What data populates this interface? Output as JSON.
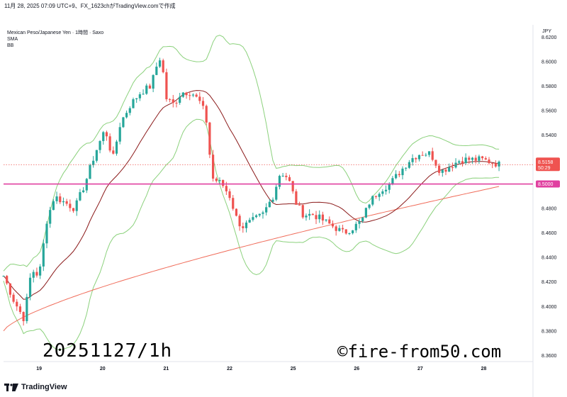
{
  "header": {
    "text": "11月 28, 2025 07:09 UTC+9、FX_1623chがTradingView.comで作成"
  },
  "legend": {
    "symbol": "Mexican Peso/Japanese Yen · 1時間 · Saxo",
    "ind1": "SMA",
    "ind2": "BB"
  },
  "currency": "JPY",
  "price_tag": {
    "value": "8.5158",
    "countdown": "50:29",
    "color": "#ef5350"
  },
  "line_tag": {
    "value": "8.5000",
    "color": "#e040a0"
  },
  "watermark_left": "20251127/1h",
  "watermark_right": "©fire-from50.com",
  "footer": {
    "brand": "TradingView"
  },
  "colors": {
    "up": "#26a69a",
    "down": "#ef5350",
    "bb": "#8bd17c",
    "sma_fast": "#8b1a1a",
    "sma_slow": "#f06c5a",
    "hline": "#e040a0"
  },
  "chart_data": {
    "type": "candlestick",
    "ylim": [
      8.355,
      8.63
    ],
    "y_ticks": [
      "8.3600",
      "8.3800",
      "8.4000",
      "8.4200",
      "8.4400",
      "8.4600",
      "8.4800",
      "8.5000",
      "8.5200",
      "8.5400",
      "8.5600",
      "8.5800",
      "8.6000",
      "8.6200"
    ],
    "x_ticks": [
      {
        "label": "19",
        "t": 0.07
      },
      {
        "label": "20",
        "t": 0.195
      },
      {
        "label": "21",
        "t": 0.32
      },
      {
        "label": "22",
        "t": 0.445
      },
      {
        "label": "25",
        "t": 0.57
      },
      {
        "label": "26",
        "t": 0.695
      },
      {
        "label": "27",
        "t": 0.82
      },
      {
        "label": "28",
        "t": 0.945
      }
    ],
    "horizontal_line": 8.5,
    "last_price": 8.5158,
    "close_path": [
      [
        0,
        8.425
      ],
      [
        0.02,
        8.405
      ],
      [
        0.04,
        8.39
      ],
      [
        0.055,
        8.43
      ],
      [
        0.07,
        8.425
      ],
      [
        0.085,
        8.47
      ],
      [
        0.1,
        8.49
      ],
      [
        0.12,
        8.485
      ],
      [
        0.14,
        8.48
      ],
      [
        0.16,
        8.5
      ],
      [
        0.18,
        8.525
      ],
      [
        0.2,
        8.545
      ],
      [
        0.215,
        8.52
      ],
      [
        0.23,
        8.55
      ],
      [
        0.25,
        8.565
      ],
      [
        0.27,
        8.575
      ],
      [
        0.29,
        8.58
      ],
      [
        0.3,
        8.595
      ],
      [
        0.31,
        8.605
      ],
      [
        0.32,
        8.57
      ],
      [
        0.335,
        8.565
      ],
      [
        0.35,
        8.575
      ],
      [
        0.37,
        8.575
      ],
      [
        0.39,
        8.565
      ],
      [
        0.4,
        8.55
      ],
      [
        0.41,
        8.505
      ],
      [
        0.43,
        8.5
      ],
      [
        0.445,
        8.49
      ],
      [
        0.46,
        8.47
      ],
      [
        0.47,
        8.465
      ],
      [
        0.49,
        8.47
      ],
      [
        0.51,
        8.475
      ],
      [
        0.53,
        8.49
      ],
      [
        0.545,
        8.51
      ],
      [
        0.56,
        8.505
      ],
      [
        0.575,
        8.485
      ],
      [
        0.59,
        8.475
      ],
      [
        0.61,
        8.475
      ],
      [
        0.63,
        8.47
      ],
      [
        0.65,
        8.465
      ],
      [
        0.67,
        8.46
      ],
      [
        0.69,
        8.465
      ],
      [
        0.705,
        8.47
      ],
      [
        0.72,
        8.485
      ],
      [
        0.74,
        8.495
      ],
      [
        0.76,
        8.5
      ],
      [
        0.78,
        8.51
      ],
      [
        0.8,
        8.52
      ],
      [
        0.82,
        8.525
      ],
      [
        0.84,
        8.525
      ],
      [
        0.86,
        8.51
      ],
      [
        0.88,
        8.515
      ],
      [
        0.9,
        8.52
      ],
      [
        0.92,
        8.52
      ],
      [
        0.94,
        8.52
      ],
      [
        0.96,
        8.518
      ],
      [
        0.975,
        8.516
      ]
    ]
  }
}
